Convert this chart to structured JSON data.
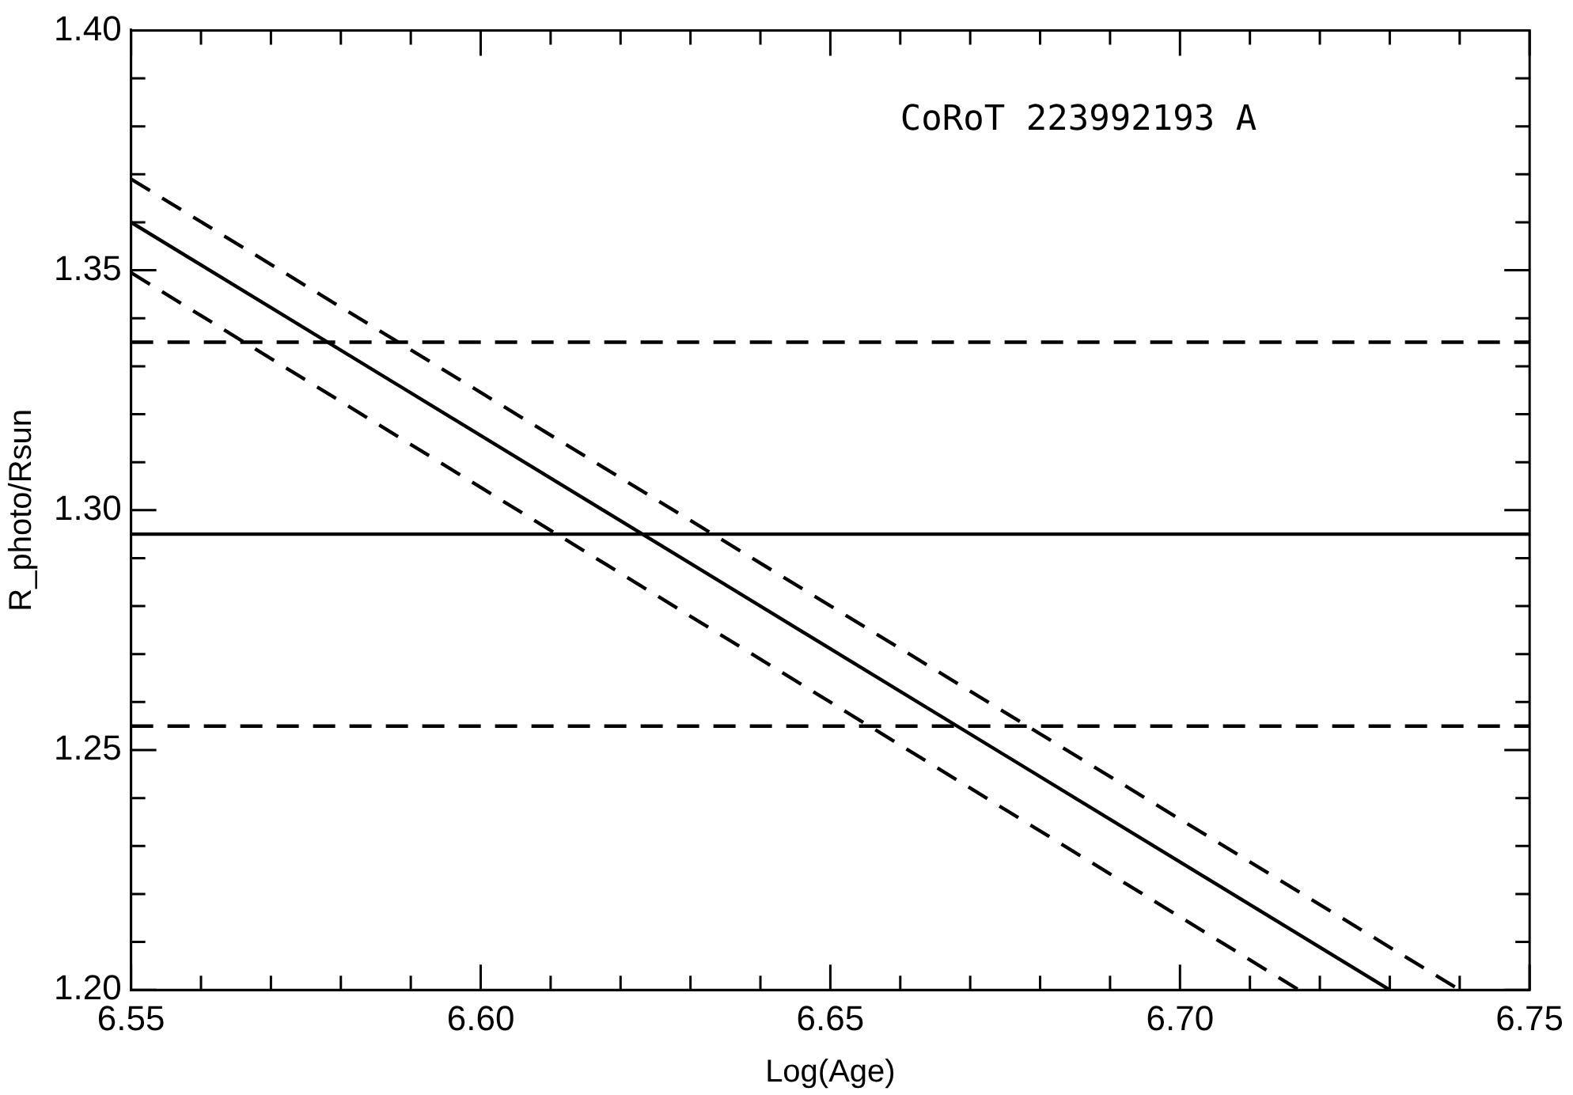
{
  "chart_data": {
    "type": "line",
    "xlabel": "Log(Age)",
    "ylabel": "R_photo/Rsun",
    "annotations": [
      "CoRoT 223992193 A"
    ],
    "xlim": [
      6.55,
      6.75
    ],
    "xticks": [
      6.55,
      {
        "value": 6.56,
        "label": null
      },
      {
        "value": 6.57,
        "label": null
      },
      {
        "value": 6.58,
        "label": null
      },
      {
        "value": 6.59,
        "label": null
      },
      "6.60",
      {
        "value": 6.61,
        "label": null
      },
      {
        "value": 6.62,
        "label": null
      },
      {
        "value": 6.63,
        "label": null
      },
      {
        "value": 6.64,
        "label": null
      },
      6.65,
      {
        "value": 6.66,
        "label": null
      },
      {
        "value": 6.67,
        "label": null
      },
      {
        "value": 6.68,
        "label": null
      },
      {
        "value": 6.69,
        "label": null
      },
      {
        "value": 6.7,
        "label": "6.70"
      },
      {
        "value": 6.71,
        "label": null
      },
      {
        "value": 6.72,
        "label": null
      },
      {
        "value": 6.73,
        "label": null
      },
      {
        "value": 6.74,
        "label": null
      },
      6.75
    ],
    "ylim": [
      1.2,
      1.4
    ],
    "yticks": [
      {
        "value": 1.2,
        "label": "1.20"
      },
      {
        "value": 1.21,
        "label": null
      },
      {
        "value": 1.22,
        "label": null
      },
      {
        "value": 1.23,
        "label": null
      },
      {
        "value": 1.24,
        "label": null
      },
      1.25,
      {
        "value": 1.26,
        "label": null
      },
      {
        "value": 1.27,
        "label": null
      },
      {
        "value": 1.28,
        "label": null
      },
      {
        "value": 1.29,
        "label": null
      },
      {
        "value": 1.3,
        "label": "1.30"
      },
      {
        "value": 1.31,
        "label": null
      },
      {
        "value": 1.32,
        "label": null
      },
      {
        "value": 1.33,
        "label": null
      },
      {
        "value": 1.34,
        "label": null
      },
      1.35,
      {
        "value": 1.36,
        "label": null
      },
      {
        "value": 1.37,
        "label": null
      },
      {
        "value": 1.38,
        "label": null
      },
      {
        "value": 1.39,
        "label": null
      },
      {
        "value": 1.4,
        "label": "1.40"
      }
    ],
    "grid": false,
    "legend": false,
    "marker": "none",
    "series": [
      {
        "color": "#000000",
        "line_style": "solid",
        "x": [
          6.55,
          6.73
        ],
        "values": [
          1.36,
          1.2
        ]
      },
      {
        "color": "#000000",
        "line_style": "dashed",
        "x": [
          6.55,
          6.74
        ],
        "values": [
          1.369,
          1.2
        ]
      },
      {
        "color": "#000000",
        "line_style": "dashed",
        "x": [
          6.55,
          6.717
        ],
        "values": [
          1.3495,
          1.2
        ]
      }
    ],
    "ref_lines": [
      {
        "axis": "y",
        "value": 1.295,
        "color": "#000000",
        "line_style": "solid"
      },
      {
        "axis": "y",
        "value": 1.335,
        "color": "#000000",
        "line_style": "dashed"
      },
      {
        "axis": "y",
        "value": 1.255,
        "color": "#000000",
        "line_style": "dashed"
      }
    ]
  }
}
